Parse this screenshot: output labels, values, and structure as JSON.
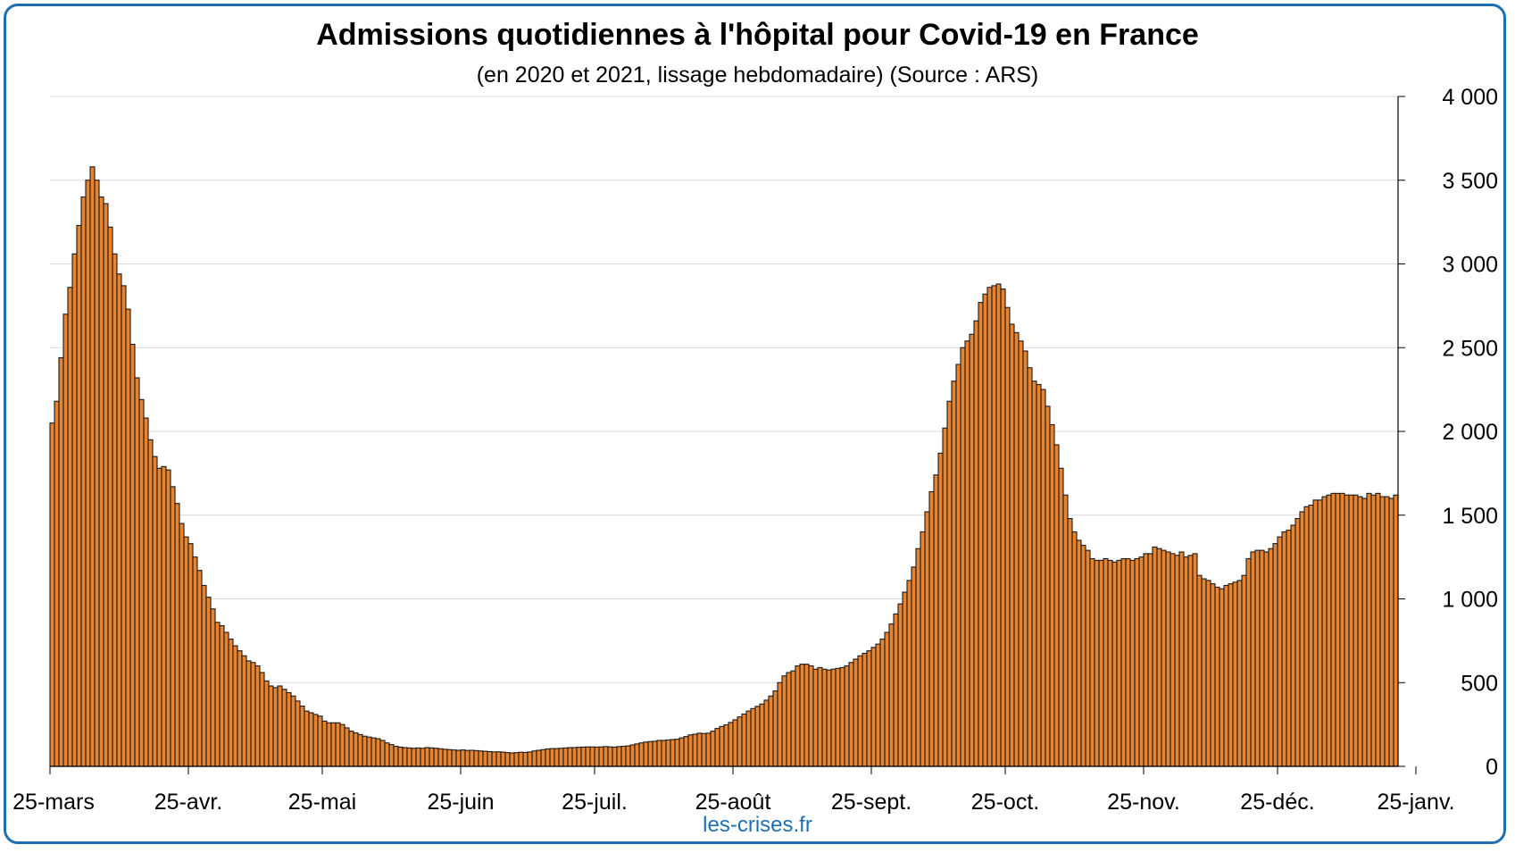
{
  "chart_data": {
    "type": "bar",
    "title": "Admissions quotidiennes à l'hôpital pour Covid-19 en France",
    "subtitle": "(en 2020 et 2021, lissage hebdomadaire) (Source : ARS)",
    "credit": "les-crises.fr",
    "ylim": [
      0,
      4000
    ],
    "y_ticks": [
      {
        "value": 0,
        "label": "0"
      },
      {
        "value": 500,
        "label": "500"
      },
      {
        "value": 1000,
        "label": "1 000"
      },
      {
        "value": 1500,
        "label": "1 500"
      },
      {
        "value": 2000,
        "label": "2 000"
      },
      {
        "value": 2500,
        "label": "2 500"
      },
      {
        "value": 3000,
        "label": "3 000"
      },
      {
        "value": 3500,
        "label": "3 500"
      },
      {
        "value": 4000,
        "label": "4 000"
      }
    ],
    "x_ticks": [
      {
        "index": 0,
        "label": "25-mars"
      },
      {
        "index": 31,
        "label": "25-avr."
      },
      {
        "index": 61,
        "label": "25-mai"
      },
      {
        "index": 92,
        "label": "25-juin"
      },
      {
        "index": 122,
        "label": "25-juil."
      },
      {
        "index": 153,
        "label": "25-août"
      },
      {
        "index": 184,
        "label": "25-sept."
      },
      {
        "index": 214,
        "label": "25-oct."
      },
      {
        "index": 245,
        "label": "25-nov."
      },
      {
        "index": 275,
        "label": "25-déc."
      },
      {
        "index": 306,
        "label": "25-janv."
      }
    ],
    "values": [
      2050,
      2180,
      2440,
      2700,
      2860,
      3060,
      3230,
      3400,
      3500,
      3580,
      3500,
      3400,
      3360,
      3220,
      3060,
      2940,
      2870,
      2730,
      2520,
      2320,
      2190,
      2080,
      1950,
      1850,
      1780,
      1790,
      1770,
      1670,
      1570,
      1450,
      1370,
      1330,
      1250,
      1170,
      1080,
      1010,
      940,
      860,
      840,
      800,
      760,
      720,
      690,
      660,
      630,
      620,
      600,
      560,
      510,
      480,
      470,
      480,
      460,
      440,
      420,
      390,
      360,
      330,
      320,
      310,
      300,
      270,
      260,
      260,
      260,
      250,
      230,
      210,
      200,
      190,
      180,
      175,
      170,
      165,
      155,
      140,
      130,
      120,
      115,
      112,
      110,
      108,
      110,
      108,
      112,
      110,
      108,
      105,
      102,
      100,
      98,
      96,
      98,
      95,
      96,
      94,
      92,
      90,
      88,
      86,
      87,
      85,
      82,
      80,
      82,
      84,
      83,
      86,
      92,
      96,
      100,
      104,
      106,
      106,
      108,
      110,
      112,
      112,
      114,
      115,
      116,
      116,
      115,
      116,
      118,
      116,
      115,
      118,
      120,
      122,
      128,
      134,
      140,
      145,
      148,
      150,
      155,
      155,
      158,
      160,
      162,
      170,
      178,
      188,
      192,
      198,
      196,
      198,
      210,
      226,
      238,
      248,
      262,
      278,
      295,
      312,
      330,
      345,
      358,
      372,
      395,
      420,
      450,
      500,
      540,
      560,
      570,
      600,
      610,
      610,
      600,
      580,
      590,
      580,
      575,
      580,
      585,
      590,
      600,
      620,
      640,
      660,
      675,
      690,
      710,
      730,
      760,
      800,
      850,
      910,
      970,
      1040,
      1110,
      1190,
      1300,
      1400,
      1520,
      1640,
      1740,
      1870,
      2020,
      2180,
      2300,
      2400,
      2500,
      2540,
      2580,
      2660,
      2770,
      2820,
      2860,
      2870,
      2880,
      2850,
      2740,
      2640,
      2590,
      2540,
      2480,
      2380,
      2300,
      2280,
      2250,
      2150,
      2040,
      1920,
      1780,
      1620,
      1480,
      1400,
      1350,
      1320,
      1290,
      1240,
      1230,
      1230,
      1240,
      1230,
      1220,
      1230,
      1240,
      1240,
      1230,
      1240,
      1250,
      1270,
      1270,
      1310,
      1300,
      1290,
      1280,
      1270,
      1260,
      1280,
      1250,
      1260,
      1270,
      1140,
      1120,
      1110,
      1090,
      1070,
      1060,
      1080,
      1090,
      1100,
      1110,
      1140,
      1240,
      1280,
      1290,
      1290,
      1280,
      1300,
      1330,
      1370,
      1400,
      1410,
      1440,
      1480,
      1520,
      1550,
      1560,
      1590,
      1590,
      1610,
      1620,
      1630,
      1630,
      1630,
      1620,
      1620,
      1620,
      1610,
      1600,
      1630,
      1620,
      1630,
      1610,
      1610,
      1600,
      1620
    ],
    "bar_color": "#e8832f",
    "bar_stroke": "#1a1a1a",
    "grid": true,
    "y_axis_side": "right"
  }
}
